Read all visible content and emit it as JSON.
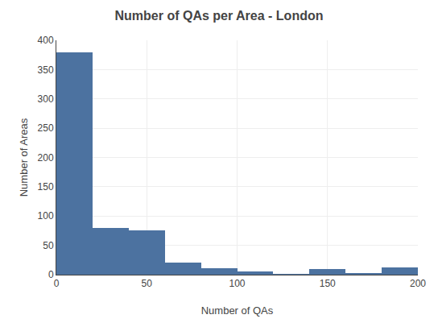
{
  "chart_data": {
    "type": "histogram",
    "title": "Number of QAs per Area - London",
    "x_label": "Number of QAs",
    "y_label": "Number of Areas",
    "bins": [
      0,
      20,
      40,
      60,
      80,
      100,
      120,
      140,
      160,
      180,
      200
    ],
    "values": [
      380,
      80,
      75,
      20,
      11,
      5,
      1,
      10,
      2,
      12
    ],
    "color": "#4c72a0",
    "xlim": [
      0,
      200
    ],
    "xticks": [
      0,
      50,
      100,
      150,
      200
    ],
    "ylim": [
      0,
      400
    ],
    "yticks": [
      0,
      50,
      100,
      150,
      200,
      250,
      300,
      350,
      400
    ],
    "grid": true
  }
}
